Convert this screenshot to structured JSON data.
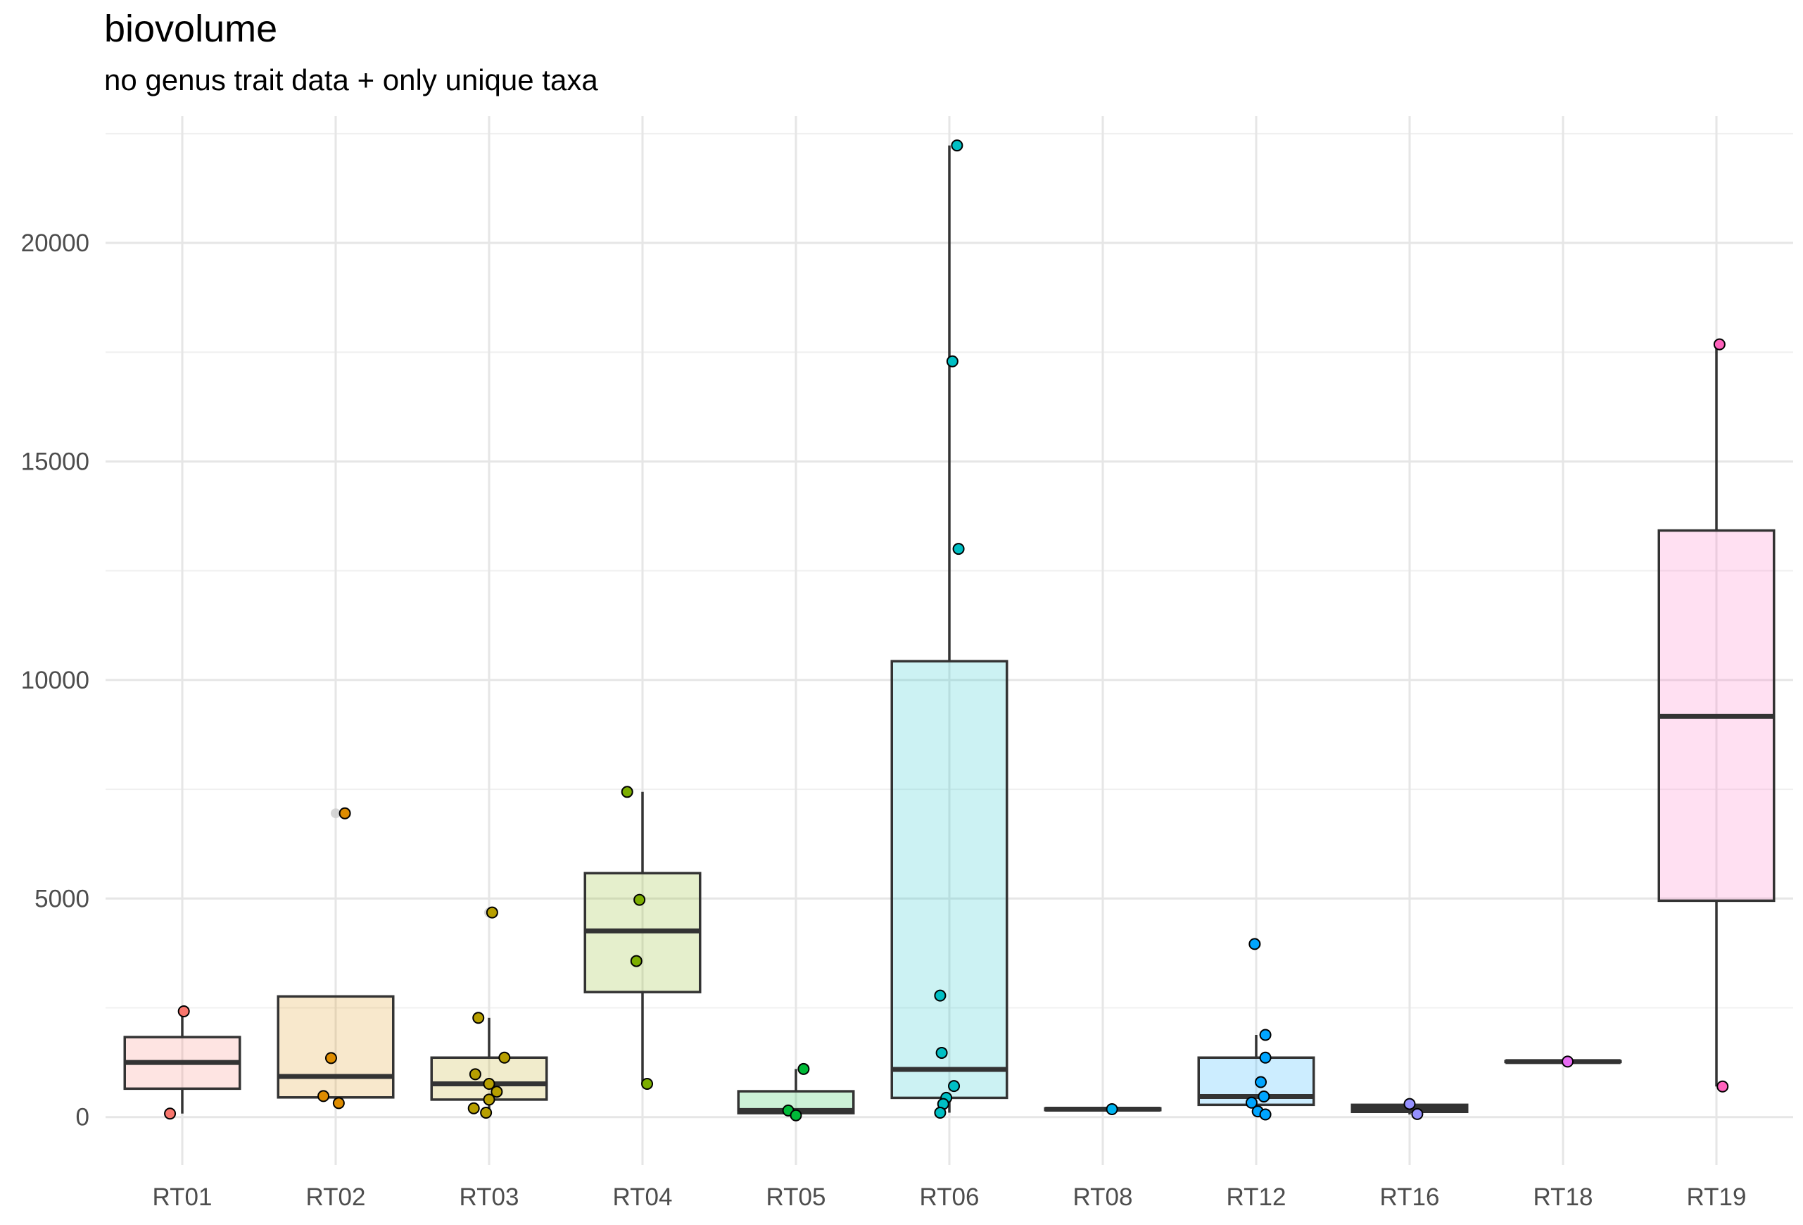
{
  "chart_data": {
    "type": "boxplot",
    "title": "biovolume",
    "subtitle": "no genus trait data + only unique taxa",
    "xlabel": "",
    "ylabel": "",
    "ylim": [
      -1100,
      22900
    ],
    "y_ticks": [
      0,
      5000,
      10000,
      15000,
      20000
    ],
    "grid": true,
    "legend": "none",
    "categories": [
      "RT01",
      "RT02",
      "RT03",
      "RT04",
      "RT05",
      "RT06",
      "RT08",
      "RT12",
      "RT16",
      "RT18",
      "RT19"
    ],
    "colors": [
      "#F8766D",
      "#DE8C00",
      "#B79F00",
      "#7CAE00",
      "#00BA38",
      "#00BFC4",
      "#00B4F0",
      "#00A5FF",
      "#9590FF",
      "#E76BF3",
      "#FF62BC"
    ],
    "boxes": [
      {
        "category": "RT01",
        "q1": 650,
        "median": 1250,
        "q3": 1830,
        "whisker_low": 80,
        "whisker_high": 2420,
        "outliers": []
      },
      {
        "category": "RT02",
        "q1": 450,
        "median": 930,
        "q3": 2760,
        "whisker_low": 300,
        "whisker_high": 2760,
        "outliers": [
          6950
        ]
      },
      {
        "category": "RT03",
        "q1": 400,
        "median": 760,
        "q3": 1360,
        "whisker_low": 60,
        "whisker_high": 2270,
        "outliers": [
          4680
        ]
      },
      {
        "category": "RT04",
        "q1": 2860,
        "median": 4260,
        "q3": 5580,
        "whisker_low": 760,
        "whisker_high": 7440,
        "outliers": []
      },
      {
        "category": "RT05",
        "q1": 90,
        "median": 150,
        "q3": 590,
        "whisker_low": 40,
        "whisker_high": 1100,
        "outliers": []
      },
      {
        "category": "RT06",
        "q1": 440,
        "median": 1090,
        "q3": 10430,
        "whisker_low": 100,
        "whisker_high": 22230,
        "outliers": []
      },
      {
        "category": "RT08",
        "q1": 160,
        "median": 180,
        "q3": 200,
        "whisker_low": 160,
        "whisker_high": 200,
        "outliers": []
      },
      {
        "category": "RT12",
        "q1": 280,
        "median": 470,
        "q3": 1360,
        "whisker_low": 60,
        "whisker_high": 1880,
        "outliers": [
          3960
        ]
      },
      {
        "category": "RT16",
        "q1": 120,
        "median": 200,
        "q3": 280,
        "whisker_low": 60,
        "whisker_high": 330,
        "outliers": []
      },
      {
        "category": "RT18",
        "q1": 1260,
        "median": 1270,
        "q3": 1280,
        "whisker_low": 1260,
        "whisker_high": 1280,
        "outliers": []
      },
      {
        "category": "RT19",
        "q1": 4950,
        "median": 9170,
        "q3": 13420,
        "whisker_low": 700,
        "whisker_high": 17680,
        "outliers": []
      }
    ],
    "points": [
      {
        "category": "RT01",
        "y": 2420,
        "jitter": 0.01
      },
      {
        "category": "RT01",
        "y": 80,
        "jitter": -0.08
      },
      {
        "category": "RT02",
        "y": 6950,
        "jitter": 0.06
      },
      {
        "category": "RT02",
        "y": 1350,
        "jitter": -0.03
      },
      {
        "category": "RT02",
        "y": 480,
        "jitter": -0.08
      },
      {
        "category": "RT02",
        "y": 320,
        "jitter": 0.02
      },
      {
        "category": "RT03",
        "y": 4680,
        "jitter": 0.02
      },
      {
        "category": "RT03",
        "y": 2270,
        "jitter": -0.07
      },
      {
        "category": "RT03",
        "y": 1360,
        "jitter": 0.1
      },
      {
        "category": "RT03",
        "y": 980,
        "jitter": -0.09
      },
      {
        "category": "RT03",
        "y": 760,
        "jitter": 0.0
      },
      {
        "category": "RT03",
        "y": 580,
        "jitter": 0.05
      },
      {
        "category": "RT03",
        "y": 400,
        "jitter": 0.0
      },
      {
        "category": "RT03",
        "y": 200,
        "jitter": -0.1
      },
      {
        "category": "RT03",
        "y": 100,
        "jitter": -0.02
      },
      {
        "category": "RT04",
        "y": 7440,
        "jitter": -0.1
      },
      {
        "category": "RT04",
        "y": 4970,
        "jitter": -0.02
      },
      {
        "category": "RT04",
        "y": 3570,
        "jitter": -0.04
      },
      {
        "category": "RT04",
        "y": 760,
        "jitter": 0.03
      },
      {
        "category": "RT05",
        "y": 1100,
        "jitter": 0.05
      },
      {
        "category": "RT05",
        "y": 150,
        "jitter": -0.05
      },
      {
        "category": "RT05",
        "y": 40,
        "jitter": 0.0
      },
      {
        "category": "RT06",
        "y": 22230,
        "jitter": 0.05
      },
      {
        "category": "RT06",
        "y": 17290,
        "jitter": 0.02
      },
      {
        "category": "RT06",
        "y": 13000,
        "jitter": 0.06
      },
      {
        "category": "RT06",
        "y": 2780,
        "jitter": -0.06
      },
      {
        "category": "RT06",
        "y": 1470,
        "jitter": -0.05
      },
      {
        "category": "RT06",
        "y": 710,
        "jitter": 0.03
      },
      {
        "category": "RT06",
        "y": 440,
        "jitter": -0.02
      },
      {
        "category": "RT06",
        "y": 300,
        "jitter": -0.04
      },
      {
        "category": "RT06",
        "y": 100,
        "jitter": -0.06
      },
      {
        "category": "RT08",
        "y": 180,
        "jitter": 0.06
      },
      {
        "category": "RT12",
        "y": 3960,
        "jitter": -0.01
      },
      {
        "category": "RT12",
        "y": 1880,
        "jitter": 0.06
      },
      {
        "category": "RT12",
        "y": 1360,
        "jitter": 0.06
      },
      {
        "category": "RT12",
        "y": 800,
        "jitter": 0.03
      },
      {
        "category": "RT12",
        "y": 470,
        "jitter": 0.05
      },
      {
        "category": "RT12",
        "y": 330,
        "jitter": -0.03
      },
      {
        "category": "RT12",
        "y": 130,
        "jitter": 0.01
      },
      {
        "category": "RT12",
        "y": 60,
        "jitter": 0.06
      },
      {
        "category": "RT16",
        "y": 300,
        "jitter": 0.0
      },
      {
        "category": "RT16",
        "y": 70,
        "jitter": 0.05
      },
      {
        "category": "RT18",
        "y": 1270,
        "jitter": 0.03
      },
      {
        "category": "RT19",
        "y": 17680,
        "jitter": 0.02
      },
      {
        "category": "RT19",
        "y": 700,
        "jitter": 0.04
      }
    ]
  }
}
